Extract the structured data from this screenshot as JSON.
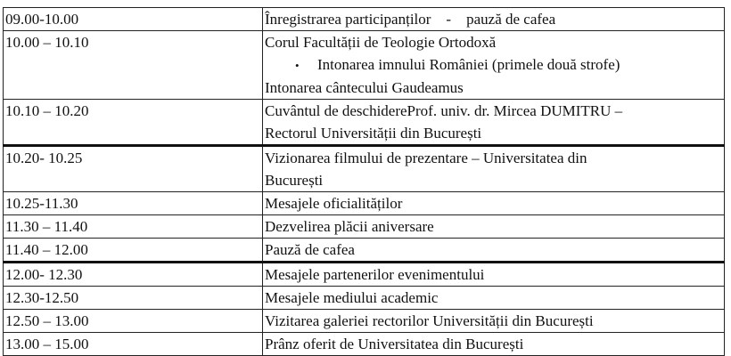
{
  "schedule": [
    {
      "time": "09.00-10.00",
      "lines": [
        "Înregistrarea participanților    -    pauză de cafea"
      ]
    },
    {
      "time": "10.00 – 10.10",
      "lines": [
        "Corul Facultății de Teologie Ortodoxă"
      ],
      "bullet": "Intonarea imnului României (primele două strofe)",
      "after": "Intonarea cântecului Gaudeamus"
    },
    {
      "time": "10.10 – 10.20",
      "lines": [
        "Cuvântul de deschidereProf. univ. dr. Mircea DUMITRU –",
        "Rectorul Universității din București"
      ]
    },
    {
      "time": "10.20- 10.25",
      "lines": [
        "Vizionarea filmului de prezentare – Universitatea din",
        "București"
      ]
    },
    {
      "time": "10.25-11.30",
      "lines": [
        "Mesajele oficialităților"
      ]
    },
    {
      "time": "11.30 – 11.40",
      "lines": [
        "Dezvelirea plăcii aniversare"
      ]
    },
    {
      "time": "11.40 – 12.00",
      "lines": [
        "Pauză de cafea"
      ]
    },
    {
      "time": "12.00- 12.30",
      "lines": [
        "Mesajele partenerilor evenimentului"
      ]
    },
    {
      "time": "12.30-12.50",
      "lines": [
        "Mesajele mediului academic"
      ]
    },
    {
      "time": "12.50 – 13.00",
      "lines": [
        "Vizitarea galeriei rectorilor Universității din București"
      ]
    },
    {
      "time": "13.00 – 15.00",
      "lines": [
        "Prânz oferit de Universitatea din București"
      ]
    }
  ]
}
